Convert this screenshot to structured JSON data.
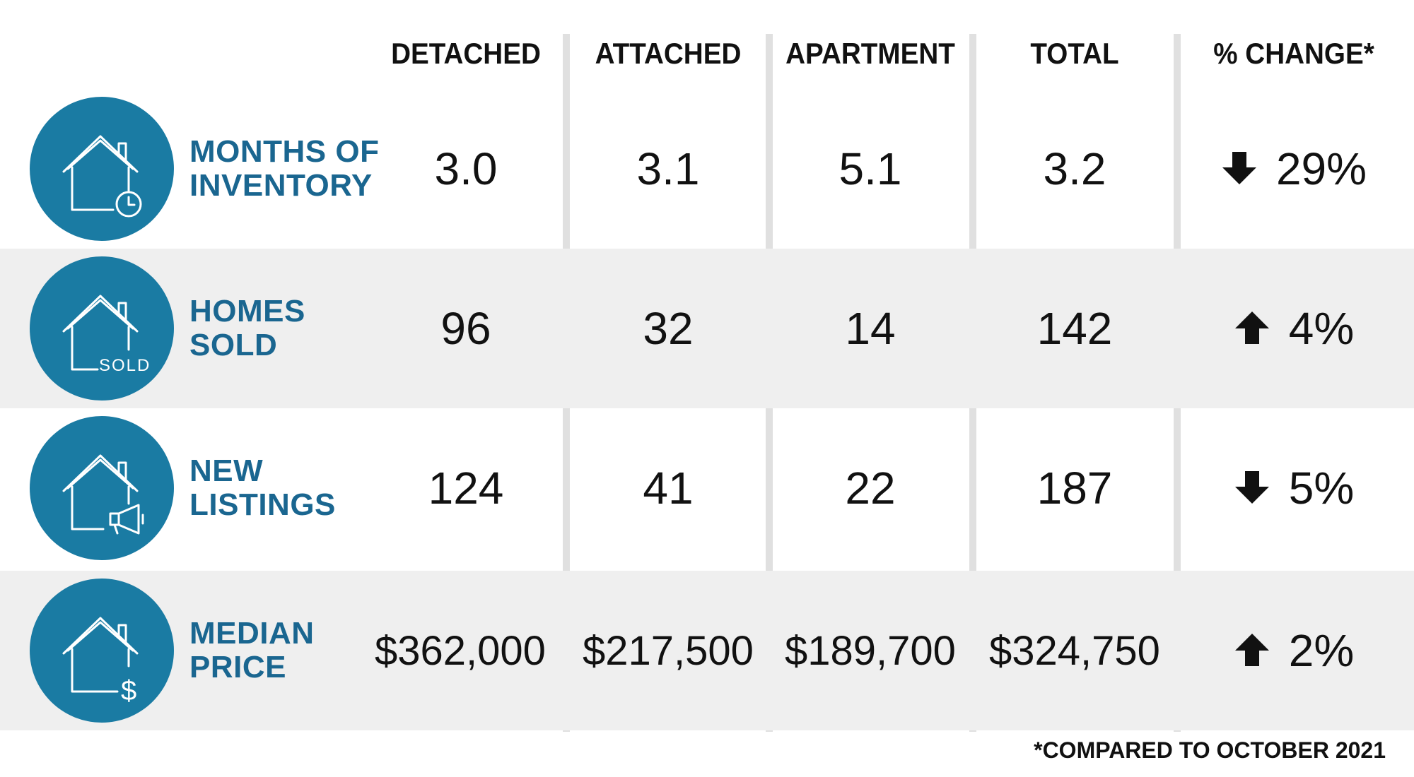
{
  "header": {
    "columns": [
      "DETACHED",
      "ATTACHED",
      "APARTMENT",
      "TOTAL",
      "% CHANGE*"
    ]
  },
  "rows": [
    {
      "label_line1": "MONTHS OF",
      "label_line2": "INVENTORY",
      "icon": "house-clock-icon",
      "detached": "3.0",
      "attached": "3.1",
      "apartment": "5.1",
      "total": "3.2",
      "change": "29%",
      "direction": "down"
    },
    {
      "label_line1": "HOMES",
      "label_line2": "SOLD",
      "icon": "house-sold-icon",
      "icon_text": "SOLD",
      "detached": "96",
      "attached": "32",
      "apartment": "14",
      "total": "142",
      "change": "4%",
      "direction": "up"
    },
    {
      "label_line1": "NEW",
      "label_line2": "LISTINGS",
      "icon": "house-megaphone-icon",
      "detached": "124",
      "attached": "41",
      "apartment": "22",
      "total": "187",
      "change": "5%",
      "direction": "down"
    },
    {
      "label_line1": "MEDIAN",
      "label_line2": "PRICE",
      "icon": "house-dollar-icon",
      "icon_text": "$",
      "detached": "$362,000",
      "attached": "$217,500",
      "apartment": "$189,700",
      "total": "$324,750",
      "change": "2%",
      "direction": "up"
    }
  ],
  "footnote": "*COMPARED TO OCTOBER 2021",
  "colors": {
    "accent": "#1a7ba3",
    "label": "#1a6690",
    "shade": "#efefef",
    "divider": "#e0e0e0"
  }
}
